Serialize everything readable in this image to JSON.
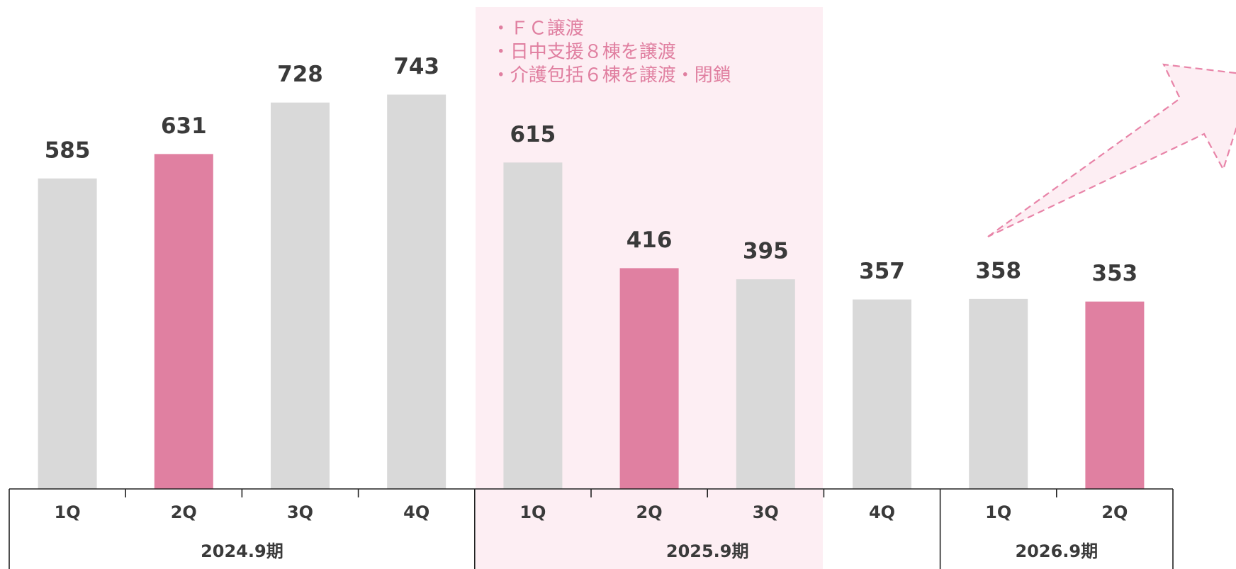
{
  "chart_data": {
    "type": "bar",
    "groups": [
      {
        "label": "2024.9期",
        "categories": [
          "1Q",
          "2Q",
          "3Q",
          "4Q"
        ],
        "values": [
          585,
          631,
          728,
          743
        ],
        "colors": [
          "#d9d9d9",
          "#e080a1",
          "#d9d9d9",
          "#d9d9d9"
        ]
      },
      {
        "label": "2025.9期",
        "categories": [
          "1Q",
          "2Q",
          "3Q",
          "4Q"
        ],
        "values": [
          615,
          416,
          395,
          357
        ],
        "colors": [
          "#d9d9d9",
          "#e080a1",
          "#d9d9d9",
          "#d9d9d9"
        ],
        "annotation": [
          "・ＦＣ譲渡",
          "・日中支援８棟を譲渡",
          "・介護包括６棟を譲渡・閉鎖"
        ]
      },
      {
        "label": "2026.9期",
        "categories": [
          "1Q",
          "2Q"
        ],
        "values": [
          358,
          353
        ],
        "colors": [
          "#d9d9d9",
          "#e080a1"
        ]
      }
    ]
  }
}
